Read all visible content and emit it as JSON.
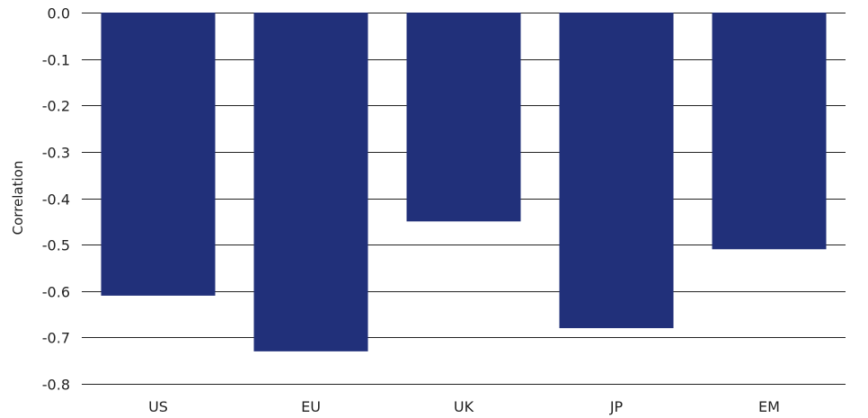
{
  "chart_data": {
    "type": "bar",
    "categories": [
      "US",
      "EU",
      "UK",
      "JP",
      "EM"
    ],
    "values": [
      -0.61,
      -0.73,
      -0.45,
      -0.68,
      -0.51
    ],
    "xlabel": "",
    "ylabel": "Correlation",
    "ylim": [
      -0.8,
      0.0
    ],
    "yticks": [
      0.0,
      -0.1,
      -0.2,
      -0.3,
      -0.4,
      -0.5,
      -0.6,
      -0.7,
      -0.8
    ],
    "ytick_labels": [
      "0.0",
      "-0.1",
      "-0.2",
      "-0.3",
      "-0.4",
      "-0.5",
      "-0.6",
      "-0.7",
      "-0.8"
    ],
    "grid": true,
    "legend": "none",
    "colors": {
      "bar": "#21307a",
      "grid": "#222222",
      "text": "#222222"
    }
  }
}
